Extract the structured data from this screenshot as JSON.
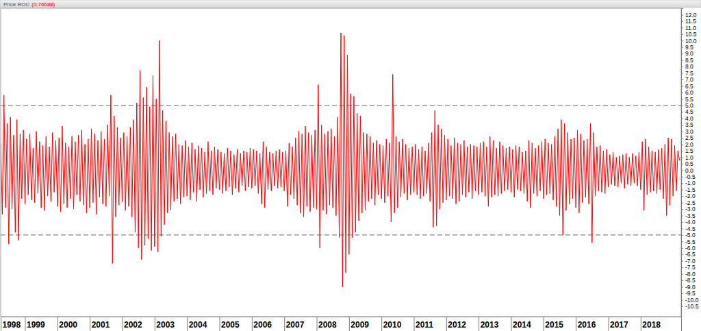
{
  "chart_data": {
    "type": "line",
    "title": "Price ROC",
    "subtitle": "(0.76688)",
    "color": "#ff0000",
    "grid": false,
    "xlim": [
      1998.25,
      2019.25
    ],
    "xticks": [
      {
        "value": 1998.25,
        "label": "1998"
      },
      1999,
      2000,
      2001,
      2002,
      2003,
      2004,
      2005,
      2006,
      2007,
      2008,
      2009,
      2010,
      2011,
      2012,
      2013,
      2014,
      2015,
      2016,
      2017,
      2018
    ],
    "ylim": [
      -11.3,
      12.5
    ],
    "yticks": [
      {
        "value": 12,
        "label": "12.0"
      },
      11.5,
      {
        "value": 11,
        "label": "11.0"
      },
      10.5,
      {
        "value": 10,
        "label": "10.0"
      },
      9.5,
      {
        "value": 9,
        "label": "9.0"
      },
      8.5,
      {
        "value": 8,
        "label": "8.0"
      },
      7.5,
      {
        "value": 7,
        "label": "7.0"
      },
      6.5,
      {
        "value": 6,
        "label": "6.0"
      },
      5.5,
      {
        "value": 5,
        "label": "5.0"
      },
      4.5,
      {
        "value": 4,
        "label": "4.0"
      },
      3.5,
      {
        "value": 3,
        "label": "3.0"
      },
      2.5,
      {
        "value": 2,
        "label": "2.0"
      },
      1.5,
      {
        "value": 1,
        "label": "1.0"
      },
      0.5,
      {
        "value": 0,
        "label": "0.0"
      },
      -0.5,
      {
        "value": -1,
        "label": "-1.0"
      },
      -1.5,
      {
        "value": -2,
        "label": "-2.0"
      },
      -2.5,
      {
        "value": -3,
        "label": "-3.0"
      },
      -3.5,
      {
        "value": -4,
        "label": "-4.0"
      },
      -4.5,
      {
        "value": -5,
        "label": "-5.0"
      },
      -5.5,
      {
        "value": -6,
        "label": "-6.0"
      },
      -6.5,
      {
        "value": -7,
        "label": "-7.0"
      },
      -7.5,
      {
        "value": -8,
        "label": "-8.0"
      },
      -8.5,
      {
        "value": -9,
        "label": "-9.0"
      },
      -9.5,
      {
        "value": -10,
        "label": "-10.0"
      },
      -10.5
    ],
    "reference_lines": [
      5,
      -5
    ],
    "x": [
      1998.25,
      1998.3,
      1998.35,
      1998.4,
      1998.45,
      1998.5,
      1998.55,
      1998.6,
      1998.65,
      1998.7,
      1998.75,
      1998.8,
      1998.85,
      1998.9,
      1998.95,
      1999,
      1999.05,
      1999.1,
      1999.15,
      1999.2,
      1999.25,
      1999.3,
      1999.35,
      1999.4,
      1999.45,
      1999.5,
      1999.55,
      1999.6,
      1999.65,
      1999.7,
      1999.75,
      1999.8,
      1999.85,
      1999.9,
      1999.95,
      2000,
      2000.05,
      2000.1,
      2000.15,
      2000.2,
      2000.25,
      2000.3,
      2000.35,
      2000.4,
      2000.45,
      2000.5,
      2000.55,
      2000.6,
      2000.65,
      2000.7,
      2000.75,
      2000.8,
      2000.85,
      2000.9,
      2000.95,
      2001,
      2001.05,
      2001.1,
      2001.15,
      2001.2,
      2001.25,
      2001.3,
      2001.35,
      2001.4,
      2001.45,
      2001.5,
      2001.55,
      2001.6,
      2001.65,
      2001.7,
      2001.75,
      2001.8,
      2001.85,
      2001.9,
      2001.95,
      2002,
      2002.05,
      2002.1,
      2002.15,
      2002.2,
      2002.25,
      2002.3,
      2002.35,
      2002.4,
      2002.45,
      2002.5,
      2002.55,
      2002.6,
      2002.65,
      2002.7,
      2002.75,
      2002.8,
      2002.85,
      2002.9,
      2002.95,
      2003,
      2003.05,
      2003.1,
      2003.15,
      2003.2,
      2003.25,
      2003.3,
      2003.35,
      2003.4,
      2003.45,
      2003.5,
      2003.55,
      2003.6,
      2003.65,
      2003.7,
      2003.75,
      2003.8,
      2003.85,
      2003.9,
      2003.95,
      2004,
      2004.05,
      2004.1,
      2004.15,
      2004.2,
      2004.25,
      2004.3,
      2004.35,
      2004.4,
      2004.45,
      2004.5,
      2004.55,
      2004.6,
      2004.65,
      2004.7,
      2004.75,
      2004.8,
      2004.85,
      2004.9,
      2004.95,
      2005,
      2005.05,
      2005.1,
      2005.15,
      2005.2,
      2005.25,
      2005.3,
      2005.35,
      2005.4,
      2005.45,
      2005.5,
      2005.55,
      2005.6,
      2005.65,
      2005.7,
      2005.75,
      2005.8,
      2005.85,
      2005.9,
      2005.95,
      2006,
      2006.05,
      2006.1,
      2006.15,
      2006.2,
      2006.25,
      2006.3,
      2006.35,
      2006.4,
      2006.45,
      2006.5,
      2006.55,
      2006.6,
      2006.65,
      2006.7,
      2006.75,
      2006.8,
      2006.85,
      2006.9,
      2006.95,
      2007,
      2007.05,
      2007.1,
      2007.15,
      2007.2,
      2007.25,
      2007.3,
      2007.35,
      2007.4,
      2007.45,
      2007.5,
      2007.55,
      2007.6,
      2007.65,
      2007.7,
      2007.75,
      2007.8,
      2007.85,
      2007.9,
      2007.95,
      2008,
      2008.05,
      2008.1,
      2008.15,
      2008.2,
      2008.25,
      2008.3,
      2008.35,
      2008.4,
      2008.45,
      2008.5,
      2008.55,
      2008.6,
      2008.65,
      2008.7,
      2008.75,
      2008.8,
      2008.85,
      2008.9,
      2008.95,
      2009,
      2009.05,
      2009.1,
      2009.15,
      2009.2,
      2009.25,
      2009.3,
      2009.35,
      2009.4,
      2009.45,
      2009.5,
      2009.55,
      2009.6,
      2009.65,
      2009.7,
      2009.75,
      2009.8,
      2009.85,
      2009.9,
      2009.95,
      2010,
      2010.05,
      2010.1,
      2010.15,
      2010.2,
      2010.25,
      2010.3,
      2010.35,
      2010.4,
      2010.45,
      2010.5,
      2010.55,
      2010.6,
      2010.65,
      2010.7,
      2010.75,
      2010.8,
      2010.85,
      2010.9,
      2010.95,
      2011,
      2011.05,
      2011.1,
      2011.15,
      2011.2,
      2011.25,
      2011.3,
      2011.35,
      2011.4,
      2011.45,
      2011.5,
      2011.55,
      2011.6,
      2011.65,
      2011.7,
      2011.75,
      2011.8,
      2011.85,
      2011.9,
      2011.95,
      2012,
      2012.05,
      2012.1,
      2012.15,
      2012.2,
      2012.25,
      2012.3,
      2012.35,
      2012.4,
      2012.45,
      2012.5,
      2012.55,
      2012.6,
      2012.65,
      2012.7,
      2012.75,
      2012.8,
      2012.85,
      2012.9,
      2012.95,
      2013,
      2013.05,
      2013.1,
      2013.15,
      2013.2,
      2013.25,
      2013.3,
      2013.35,
      2013.4,
      2013.45,
      2013.5,
      2013.55,
      2013.6,
      2013.65,
      2013.7,
      2013.75,
      2013.8,
      2013.85,
      2013.9,
      2013.95,
      2014,
      2014.05,
      2014.1,
      2014.15,
      2014.2,
      2014.25,
      2014.3,
      2014.35,
      2014.4,
      2014.45,
      2014.5,
      2014.55,
      2014.6,
      2014.65,
      2014.7,
      2014.75,
      2014.8,
      2014.85,
      2014.9,
      2014.95,
      2015,
      2015.05,
      2015.1,
      2015.15,
      2015.2,
      2015.25,
      2015.3,
      2015.35,
      2015.4,
      2015.45,
      2015.5,
      2015.55,
      2015.6,
      2015.65,
      2015.7,
      2015.75,
      2015.8,
      2015.85,
      2015.9,
      2015.95,
      2016,
      2016.05,
      2016.1,
      2016.15,
      2016.2,
      2016.25,
      2016.3,
      2016.35,
      2016.4,
      2016.45,
      2016.5,
      2016.55,
      2016.6,
      2016.65,
      2016.7,
      2016.75,
      2016.8,
      2016.85,
      2016.9,
      2016.95,
      2017,
      2017.05,
      2017.1,
      2017.15,
      2017.2,
      2017.25,
      2017.3,
      2017.35,
      2017.4,
      2017.45,
      2017.5,
      2017.55,
      2017.6,
      2017.65,
      2017.7,
      2017.75,
      2017.8,
      2017.85,
      2017.9,
      2017.95,
      2018,
      2018.05,
      2018.1,
      2018.15,
      2018.2,
      2018.25,
      2018.3,
      2018.35,
      2018.4,
      2018.45,
      2018.5,
      2018.55,
      2018.6,
      2018.65,
      2018.7,
      2018.75,
      2018.8,
      2018.85,
      2018.9,
      2018.95,
      2019,
      2019.05,
      2019.1,
      2019.15,
      2019.2
    ],
    "values": [
      2.1,
      -3.4,
      5.8,
      -2.9,
      3.6,
      -5.7,
      4.1,
      -3.0,
      2.7,
      -4.8,
      3.9,
      -5.4,
      2.8,
      -2.2,
      3.1,
      -2.6,
      2.4,
      -1.9,
      2.8,
      -2.3,
      1.7,
      -2.5,
      3.0,
      -1.8,
      2.2,
      -2.9,
      1.9,
      -3.1,
      2.6,
      -2.0,
      1.8,
      -2.4,
      2.9,
      -1.7,
      2.3,
      -2.8,
      2.5,
      -3.2,
      3.4,
      -2.6,
      2.1,
      -2.9,
      1.8,
      -2.2,
      2.6,
      -3.0,
      2.2,
      -1.9,
      2.7,
      -2.4,
      3.1,
      -2.7,
      2.0,
      -3.3,
      2.4,
      -2.9,
      3.2,
      -2.5,
      2.8,
      -3.4,
      2.3,
      -2.1,
      3.0,
      -2.6,
      2.4,
      -2.8,
      3.5,
      -2.0,
      5.8,
      -7.2,
      4.2,
      -3.6,
      3.3,
      -2.7,
      2.5,
      -2.4,
      2.9,
      -3.1,
      2.6,
      -2.8,
      3.3,
      -3.6,
      3.9,
      -4.8,
      5.2,
      -6.0,
      7.7,
      -6.9,
      5.6,
      -5.8,
      6.4,
      -5.3,
      4.9,
      -6.2,
      7.3,
      -5.9,
      5.5,
      -6.3,
      10.0,
      -5.1,
      4.6,
      -4.2,
      3.8,
      -3.3,
      2.9,
      -3.1,
      2.6,
      -2.4,
      2.8,
      -2.2,
      2.0,
      -2.6,
      1.9,
      -2.1,
      2.3,
      -2.0,
      1.8,
      -2.3,
      2.1,
      -1.7,
      1.6,
      -2.4,
      1.9,
      -1.5,
      1.7,
      -2.1,
      1.4,
      -1.8,
      2.2,
      -1.6,
      1.5,
      -1.9,
      1.8,
      -1.4,
      1.6,
      -1.5,
      1.4,
      -1.8,
      1.3,
      -1.6,
      1.7,
      -1.3,
      1.5,
      -1.9,
      1.2,
      -1.4,
      1.6,
      -1.7,
      1.3,
      -1.2,
      1.5,
      -1.6,
      1.4,
      -1.3,
      1.7,
      -1.4,
      1.6,
      -1.2,
      1.5,
      -1.8,
      1.3,
      -2.6,
      2.2,
      -2.9,
      1.8,
      -1.5,
      1.4,
      -1.6,
      1.3,
      -1.2,
      1.5,
      -1.4,
      1.6,
      -1.3,
      1.4,
      -1.6,
      1.5,
      -2.8,
      2.1,
      -1.9,
      1.8,
      -2.2,
      2.5,
      -2.7,
      3.0,
      -3.3,
      2.8,
      -3.6,
      3.4,
      -2.8,
      2.9,
      -3.2,
      2.7,
      -2.9,
      3.1,
      -3.0,
      6.6,
      -6.0,
      3.5,
      -3.1,
      2.8,
      -3.4,
      3.0,
      -2.7,
      3.2,
      -2.9,
      2.6,
      -3.5,
      4.1,
      -5.2,
      10.6,
      -9.0,
      10.4,
      -7.9,
      8.9,
      -6.5,
      5.9,
      -5.2,
      5.7,
      -4.8,
      4.4,
      -3.9,
      4.2,
      -3.3,
      2.9,
      -3.1,
      2.8,
      -2.4,
      2.6,
      -2.2,
      2.1,
      -2.7,
      2.3,
      -1.9,
      2.0,
      -2.2,
      1.9,
      -2.5,
      2.4,
      -2.0,
      2.1,
      -4.0,
      7.4,
      -3.3,
      2.6,
      -2.9,
      2.2,
      -2.1,
      2.4,
      -1.8,
      2.0,
      -2.3,
      1.7,
      -1.9,
      1.8,
      -1.7,
      2.0,
      -1.9,
      1.6,
      -2.2,
      1.8,
      -2.0,
      1.5,
      -1.8,
      2.1,
      -2.4,
      2.9,
      -4.4,
      4.6,
      -4.3,
      3.5,
      -3.0,
      3.2,
      -2.5,
      2.7,
      -2.3,
      2.4,
      -2.0,
      1.9,
      -2.2,
      2.5,
      -2.6,
      2.1,
      -2.4,
      2.0,
      -1.9,
      2.3,
      -2.1,
      1.8,
      -1.7,
      2.0,
      -2.2,
      1.9,
      -1.6,
      1.8,
      -1.9,
      2.1,
      -1.7,
      2.2,
      -2.0,
      1.8,
      -2.8,
      2.6,
      -2.1,
      2.3,
      -1.9,
      1.7,
      -2.0,
      2.2,
      -1.8,
      1.9,
      -1.6,
      1.7,
      -1.5,
      1.8,
      -1.7,
      1.6,
      -2.1,
      1.9,
      -1.5,
      1.8,
      -1.6,
      1.4,
      -1.8,
      1.5,
      -2.4,
      2.3,
      -2.9,
      2.1,
      -1.8,
      1.7,
      -2.0,
      1.9,
      -1.6,
      2.2,
      -2.2,
      2.4,
      -1.9,
      2.1,
      -1.8,
      2.0,
      -2.3,
      2.6,
      -2.8,
      3.2,
      -3.5,
      3.9,
      -5.0,
      3.6,
      -3.1,
      2.9,
      -2.6,
      2.4,
      -2.2,
      2.5,
      -2.9,
      3.1,
      -3.3,
      2.8,
      -2.5,
      2.3,
      -2.1,
      2.4,
      -2.6,
      3.6,
      -5.6,
      2.9,
      -2.0,
      1.8,
      -1.6,
      1.9,
      -1.7,
      1.5,
      -1.8,
      1.6,
      -1.3,
      1.2,
      -1.1,
      1.4,
      -1.2,
      1.0,
      -1.3,
      1.1,
      -1.0,
      1.2,
      -1.4,
      1.3,
      -1.1,
      1.0,
      -1.2,
      1.3,
      -1.0,
      1.1,
      -1.2,
      1.4,
      -1.5,
      2.2,
      -3.1,
      2.4,
      -1.9,
      1.8,
      -1.7,
      1.5,
      -1.6,
      1.4,
      -1.8,
      1.6,
      -1.5,
      1.7,
      -2.2,
      2.0,
      -3.5,
      2.5,
      -2.7,
      2.4,
      -2.0,
      1.9,
      -1.6,
      1.5,
      0.77
    ]
  }
}
